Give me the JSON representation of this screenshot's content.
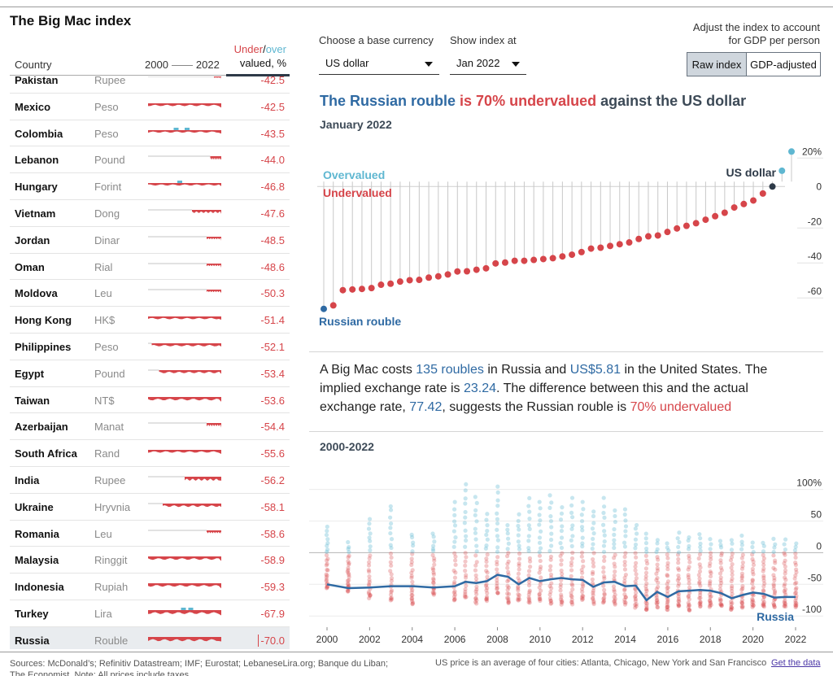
{
  "page": {
    "title": "The Big Mac index"
  },
  "table": {
    "col_country": "Country",
    "col_year_start": "2000",
    "col_year_end": "2022",
    "col_under": "Under",
    "col_slash": "/",
    "col_over": "over",
    "col_valued": "valued, %",
    "rows": [
      {
        "country": "Pakistan",
        "currency": "Rupee",
        "value": "-42.5",
        "start": 0.9,
        "over": [],
        "depth": 0.25
      },
      {
        "country": "Mexico",
        "currency": "Peso",
        "value": "-42.5",
        "start": 0.0,
        "over": [],
        "depth": 0.5
      },
      {
        "country": "Colombia",
        "currency": "Peso",
        "value": "-43.5",
        "start": 0.0,
        "over": [
          0.35,
          0.5
        ],
        "depth": 0.45
      },
      {
        "country": "Lebanon",
        "currency": "Pound",
        "value": "-44.0",
        "start": 0.85,
        "over": [],
        "depth": 0.6
      },
      {
        "country": "Hungary",
        "currency": "Forint",
        "value": "-46.8",
        "start": 0.0,
        "over": [
          0.4
        ],
        "depth": 0.45
      },
      {
        "country": "Vietnam",
        "currency": "Dong",
        "value": "-47.6",
        "start": 0.6,
        "over": [],
        "depth": 0.55
      },
      {
        "country": "Jordan",
        "currency": "Dinar",
        "value": "-48.5",
        "start": 0.8,
        "over": [],
        "depth": 0.45
      },
      {
        "country": "Oman",
        "currency": "Rial",
        "value": "-48.6",
        "start": 0.8,
        "over": [],
        "depth": 0.45
      },
      {
        "country": "Moldova",
        "currency": "Leu",
        "value": "-50.3",
        "start": 0.8,
        "over": [],
        "depth": 0.45
      },
      {
        "country": "Hong Kong",
        "currency": "HK$",
        "value": "-51.4",
        "start": 0.0,
        "over": [],
        "depth": 0.5
      },
      {
        "country": "Philippines",
        "currency": "Peso",
        "value": "-52.1",
        "start": 0.05,
        "over": [],
        "depth": 0.55
      },
      {
        "country": "Egypt",
        "currency": "Pound",
        "value": "-53.4",
        "start": 0.15,
        "over": [],
        "depth": 0.55
      },
      {
        "country": "Taiwan",
        "currency": "NT$",
        "value": "-53.6",
        "start": 0.0,
        "over": [],
        "depth": 0.6
      },
      {
        "country": "Azerbaijan",
        "currency": "Manat",
        "value": "-54.4",
        "start": 0.8,
        "over": [],
        "depth": 0.55
      },
      {
        "country": "South Africa",
        "currency": "Rand",
        "value": "-55.6",
        "start": 0.0,
        "over": [],
        "depth": 0.5
      },
      {
        "country": "India",
        "currency": "Rupee",
        "value": "-56.2",
        "start": 0.5,
        "over": [],
        "depth": 0.7
      },
      {
        "country": "Ukraine",
        "currency": "Hryvnia",
        "value": "-58.1",
        "start": 0.2,
        "over": [],
        "depth": 0.6
      },
      {
        "country": "Romania",
        "currency": "Leu",
        "value": "-58.6",
        "start": 0.8,
        "over": [],
        "depth": 0.5
      },
      {
        "country": "Malaysia",
        "currency": "Ringgit",
        "value": "-58.9",
        "start": 0.0,
        "over": [],
        "depth": 0.6
      },
      {
        "country": "Indonesia",
        "currency": "Rupiah",
        "value": "-59.3",
        "start": 0.0,
        "over": [],
        "depth": 0.6
      },
      {
        "country": "Turkey",
        "currency": "Lira",
        "value": "-67.9",
        "start": 0.0,
        "over": [
          0.45,
          0.55
        ],
        "depth": 0.7
      },
      {
        "country": "Russia",
        "currency": "Rouble",
        "value": "-70.0",
        "start": 0.0,
        "over": [],
        "depth": 0.75
      }
    ]
  },
  "controls": {
    "base_label": "Choose a base currency",
    "base_value": "US dollar",
    "date_label": "Show index at",
    "date_value": "Jan 2022",
    "adjust_label_1": "Adjust the index to account",
    "adjust_label_2": "for GDP per person",
    "raw_label": "Raw index",
    "gdp_label": "GDP-adjusted"
  },
  "headline": {
    "part1": "The Russian rouble",
    "part2": " is 70% undervalued",
    "part3": " against the US dollar",
    "date": "January 2022"
  },
  "description": {
    "t1": "A Big Mac costs ",
    "roubles": "135 roubles",
    "t2": " in Russia and ",
    "usd": "US$5.81",
    "t3": " in the United States. The implied exchange rate is ",
    "implied": "23.24",
    "t4": ". The difference between this and the actual exchange rate, ",
    "actual": "77.42",
    "t5": ", suggests the Russian rouble is ",
    "result": "70% undervalued"
  },
  "history_title": "2000-2022",
  "colors": {
    "under": "#d6454a",
    "over": "#5fb7d1",
    "russia": "#2f6aa3",
    "us": "#2e3a48",
    "stem": "#c8c8c8"
  },
  "chart_data": [
    {
      "type": "scatter",
      "title": "January 2022",
      "ylim": [
        -72,
        22
      ],
      "yticks": [
        "20%",
        "0",
        "-20",
        "-40",
        "-60"
      ],
      "label_over": "Overvalued",
      "label_under": "Undervalued",
      "label_us": "US dollar",
      "label_russia": "Russian rouble",
      "values": [
        -70,
        -68,
        -59.3,
        -58.9,
        -58.6,
        -58.1,
        -56.2,
        -55.6,
        -54.4,
        -53.6,
        -53.4,
        -52.1,
        -51.4,
        -50.3,
        -48.6,
        -48.5,
        -47.6,
        -46.8,
        -44.0,
        -43.5,
        -42.5,
        -42.5,
        -42.0,
        -41.5,
        -41.0,
        -40.0,
        -39.0,
        -37.5,
        -35.5,
        -35.0,
        -34.0,
        -33.0,
        -32.0,
        -30.0,
        -28.5,
        -28.0,
        -26.0,
        -24.0,
        -22.5,
        -21.0,
        -19.0,
        -17.0,
        -15.0,
        -12.0,
        -10.0,
        -8.0,
        -4.0,
        0.0,
        9.0,
        20.0
      ]
    },
    {
      "type": "scatter",
      "title": "2000-2022",
      "xlim": [
        2000,
        2022
      ],
      "ylim": [
        -110,
        120
      ],
      "yticks": [
        "100%",
        "50",
        "0",
        "-50",
        "-100"
      ],
      "xticks": [
        "2000",
        "2002",
        "2004",
        "2006",
        "2008",
        "2010",
        "2012",
        "2014",
        "2016",
        "2018",
        "2020",
        "2022"
      ],
      "series_label": "Russia",
      "russia_x": [
        2000,
        2001,
        2002,
        2003,
        2004,
        2005,
        2006,
        2006.5,
        2007,
        2007.5,
        2008,
        2008.5,
        2009,
        2009.5,
        2010,
        2010.5,
        2011,
        2011.5,
        2012,
        2012.5,
        2013,
        2013.5,
        2014,
        2014.5,
        2015,
        2015.5,
        2016,
        2016.5,
        2017,
        2017.5,
        2018,
        2018.5,
        2019,
        2019.5,
        2020,
        2020.5,
        2021,
        2021.5,
        2022
      ],
      "russia_y": [
        -50,
        -56,
        -55,
        -53,
        -53,
        -55,
        -53,
        -46,
        -48,
        -45,
        -35,
        -38,
        -50,
        -40,
        -45,
        -42,
        -40,
        -42,
        -43,
        -54,
        -47,
        -46,
        -53,
        -52,
        -75,
        -62,
        -70,
        -61,
        -60,
        -59,
        -60,
        -64,
        -72,
        -67,
        -63,
        -65,
        -71,
        -70,
        -70
      ],
      "cloud_years": [
        2000,
        2001,
        2002,
        2003,
        2004,
        2005,
        2006,
        2006.5,
        2007,
        2007.5,
        2008,
        2008.5,
        2009,
        2009.5,
        2010,
        2010.5,
        2011,
        2011.5,
        2012,
        2012.5,
        2013,
        2013.5,
        2014,
        2014.5,
        2015,
        2015.5,
        2016,
        2016.5,
        2017,
        2017.5,
        2018,
        2018.5,
        2019,
        2019.5,
        2020,
        2020.5,
        2021,
        2021.5,
        2022
      ],
      "cloud_top": [
        40,
        15,
        55,
        75,
        30,
        30,
        80,
        110,
        90,
        60,
        105,
        45,
        60,
        85,
        80,
        90,
        70,
        85,
        80,
        65,
        85,
        65,
        70,
        45,
        30,
        20,
        15,
        30,
        25,
        30,
        20,
        20,
        20,
        25,
        15,
        15,
        20,
        20,
        15
      ],
      "cloud_bottom": [
        -55,
        -60,
        -70,
        -75,
        -80,
        -65,
        -75,
        -70,
        -80,
        -75,
        -65,
        -80,
        -75,
        -80,
        -75,
        -80,
        -80,
        -80,
        -75,
        -80,
        -80,
        -80,
        -80,
        -85,
        -90,
        -85,
        -90,
        -85,
        -90,
        -85,
        -85,
        -85,
        -90,
        -85,
        -85,
        -85,
        -85,
        -85,
        -85
      ]
    }
  ],
  "footer": {
    "sources": "Sources: McDonald’s; Refinitiv Datastream; IMF; Eurostat; LebaneseLira.org; Banque du Liban; The Economist. Note: All prices include taxes",
    "us_note": "US price is an average of four cities: Atlanta, Chicago, New York and San Francisco",
    "get_data": "Get the data"
  }
}
